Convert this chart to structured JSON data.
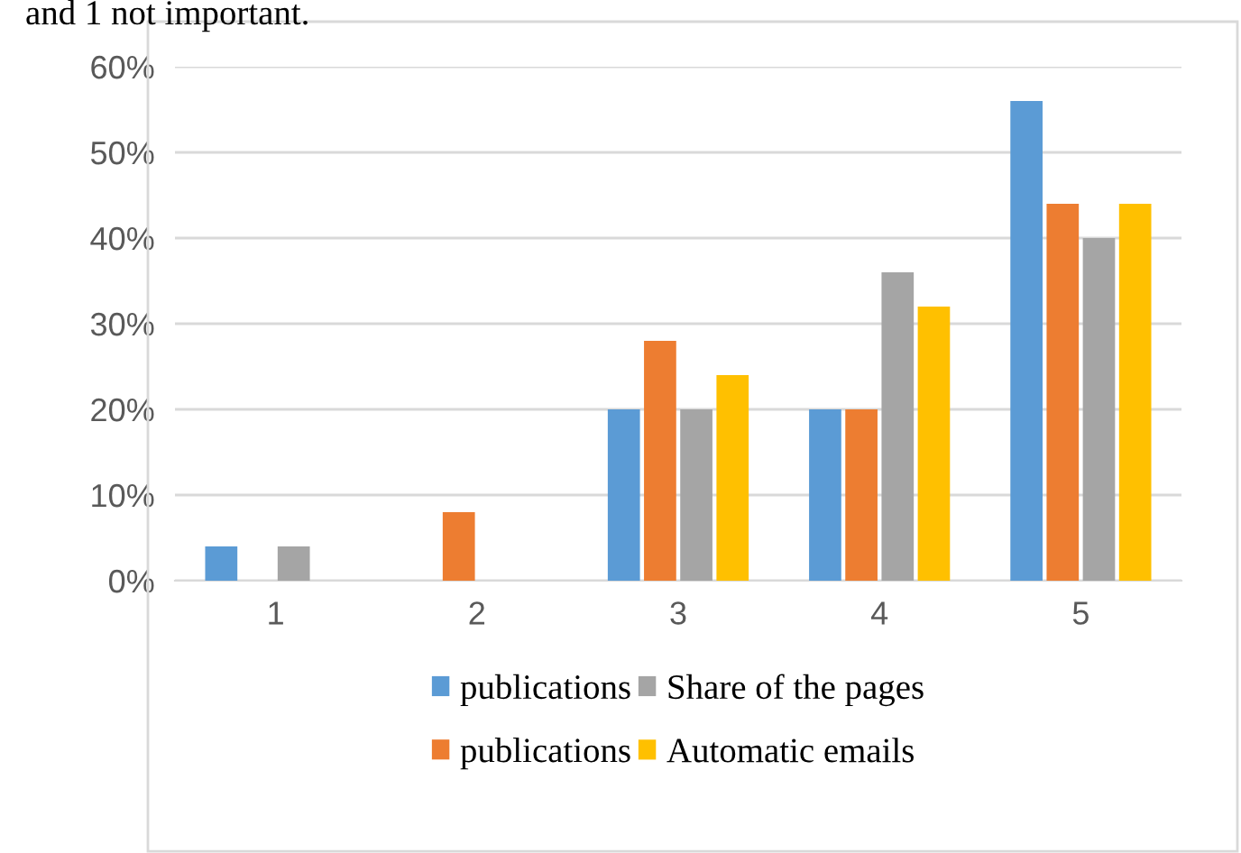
{
  "chart_data": {
    "type": "bar",
    "categories": [
      "1",
      "2",
      "3",
      "4",
      "5"
    ],
    "series": [
      {
        "name": "publications",
        "color": "#5b9bd5",
        "values": [
          4,
          0,
          20,
          20,
          56
        ]
      },
      {
        "name": "publications",
        "color": "#ed7d31",
        "values": [
          0,
          8,
          28,
          20,
          44
        ]
      },
      {
        "name": "Share of the pages",
        "color": "#a5a5a5",
        "values": [
          4,
          0,
          20,
          36,
          40
        ]
      },
      {
        "name": "Automatic emails",
        "color": "#ffc000",
        "values": [
          0,
          0,
          24,
          32,
          44
        ]
      }
    ],
    "ylim": [
      0,
      60
    ],
    "yticks": [
      {
        "value": 0,
        "label": "0%"
      },
      {
        "value": 10,
        "label": "10%"
      },
      {
        "value": 20,
        "label": "20%"
      },
      {
        "value": 30,
        "label": "30%"
      },
      {
        "value": 40,
        "label": "40%"
      },
      {
        "value": 50,
        "label": "50%"
      },
      {
        "value": 60,
        "label": "60%"
      }
    ],
    "grid": "y",
    "legend": "bottom",
    "annotations": [
      "and 1 not important."
    ]
  }
}
